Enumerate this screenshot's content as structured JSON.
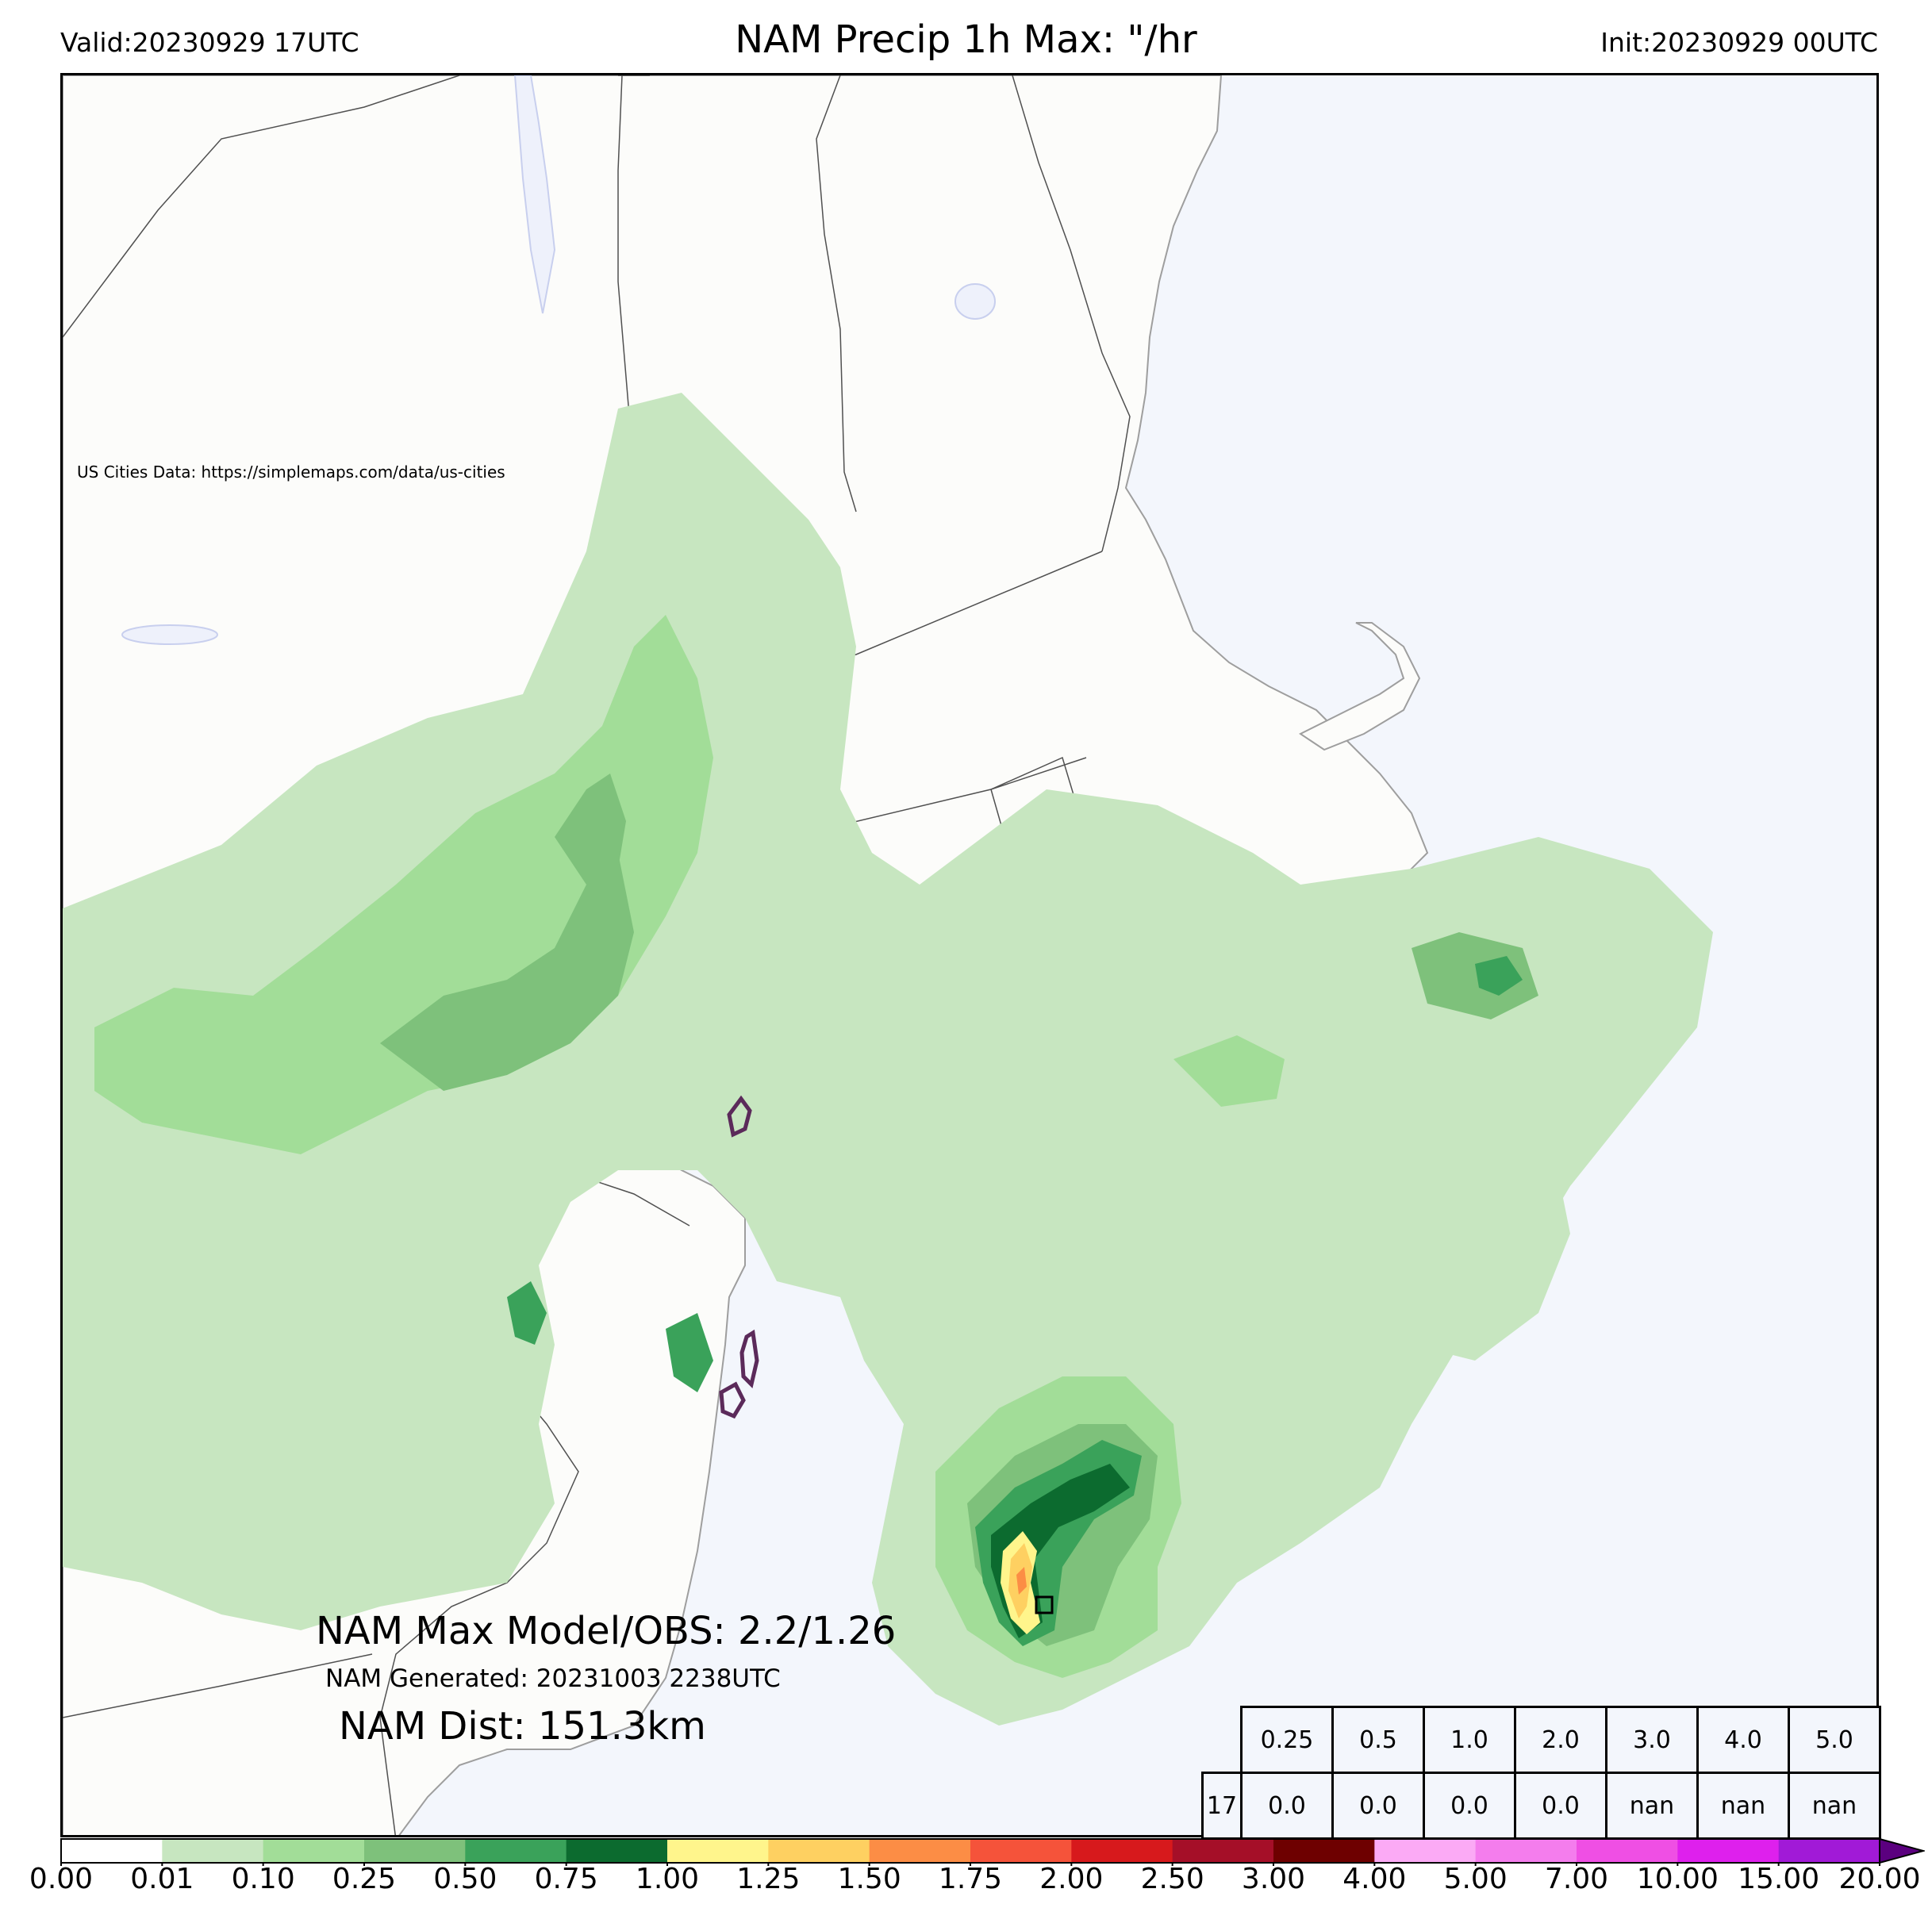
{
  "header": {
    "valid": "Valid:20230929 17UTC",
    "title": "NAM Precip 1h Max: \"/hr",
    "init": "Init:20230929 00UTC"
  },
  "credit": "US Cities Data: https://simplemaps.com/data/us-cities",
  "stats": {
    "max_model_obs": "NAM Max Model/OBS: 2.2/1.26",
    "generated": "NAM Generated: 20231003 2238UTC",
    "dist": "NAM Dist: 151.3km"
  },
  "threshold_table": {
    "headers": [
      "0.25",
      "0.5",
      "1.0",
      "2.0",
      "3.0",
      "4.0",
      "5.0"
    ],
    "row_label": "17",
    "values": [
      "0.0",
      "0.0",
      "0.0",
      "0.0",
      "nan",
      "nan",
      "nan"
    ]
  },
  "colorbar": {
    "ticks": [
      "0.00",
      "0.01",
      "0.10",
      "0.25",
      "0.50",
      "0.75",
      "1.00",
      "1.25",
      "1.50",
      "1.75",
      "2.00",
      "2.50",
      "3.00",
      "4.00",
      "5.00",
      "7.00",
      "10.00",
      "15.00",
      "20.00"
    ],
    "colors": [
      "#ffffff",
      "#c7e6c0",
      "#a2dd98",
      "#7ec17b",
      "#3aa25a",
      "#0c6b2f",
      "#fff58c",
      "#fed061",
      "#fc8d45",
      "#f5533a",
      "#d7191c",
      "#a50f28",
      "#6e0000",
      "#fbaaf5",
      "#f47ded",
      "#ef4fe4",
      "#de20ed",
      "#a11ad7",
      "#5b007f"
    ]
  },
  "map_colors": {
    "ocean": "#f3f6fc",
    "land": "#fcfcfa",
    "lake": "#eef1fb",
    "border": "#505050",
    "coast": "#9e9e9e"
  }
}
